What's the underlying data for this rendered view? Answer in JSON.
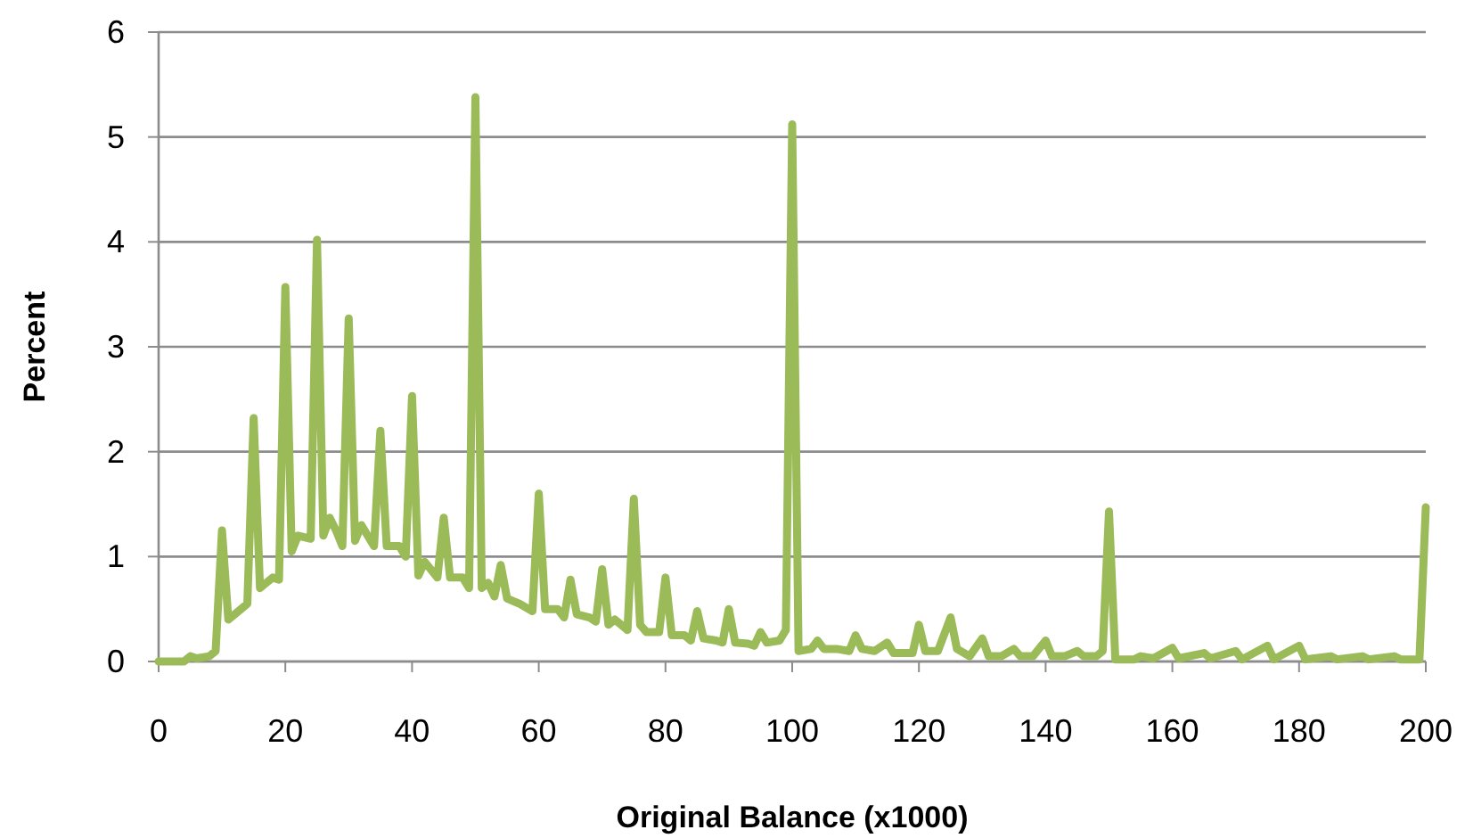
{
  "chart_data": {
    "type": "line",
    "xlabel": "Original Balance  (x1000)",
    "ylabel": "Percent",
    "x": [
      0,
      4,
      5,
      6,
      8,
      9,
      10,
      11,
      13,
      14,
      15,
      16,
      18,
      19,
      20,
      21,
      22,
      24,
      25,
      26,
      27,
      28,
      29,
      30,
      31,
      32,
      34,
      35,
      36,
      38,
      39,
      40,
      41,
      42,
      44,
      45,
      46,
      48,
      49,
      50,
      51,
      52,
      53,
      54,
      55,
      57,
      59,
      60,
      61,
      63,
      64,
      65,
      66,
      68,
      69,
      70,
      71,
      72,
      73,
      74,
      75,
      76,
      77,
      79,
      80,
      81,
      83,
      84,
      85,
      86,
      88,
      89,
      90,
      91,
      93,
      94,
      95,
      96,
      98,
      99,
      100,
      101,
      103,
      104,
      105,
      107,
      109,
      110,
      111,
      113,
      115,
      116,
      119,
      120,
      121,
      123,
      125,
      126,
      128,
      130,
      131,
      133,
      135,
      136,
      138,
      140,
      141,
      143,
      145,
      146,
      148,
      149,
      150,
      151,
      154,
      155,
      157,
      160,
      161,
      165,
      166,
      170,
      171,
      175,
      176,
      180,
      181,
      185,
      186,
      190,
      191,
      195,
      196,
      199,
      200
    ],
    "series": [
      {
        "color": "#9bbb59",
        "values": [
          0,
          0,
          0.05,
          0.03,
          0.05,
          0.1,
          1.25,
          0.4,
          0.5,
          0.55,
          2.32,
          0.7,
          0.8,
          0.78,
          3.57,
          1.05,
          1.2,
          1.17,
          4.02,
          1.2,
          1.37,
          1.25,
          1.1,
          3.27,
          1.15,
          1.3,
          1.1,
          2.2,
          1.1,
          1.1,
          1.0,
          2.53,
          0.82,
          0.95,
          0.8,
          1.37,
          0.8,
          0.8,
          0.7,
          5.38,
          0.7,
          0.75,
          0.62,
          0.92,
          0.6,
          0.55,
          0.48,
          1.6,
          0.5,
          0.5,
          0.42,
          0.78,
          0.45,
          0.42,
          0.38,
          0.88,
          0.35,
          0.4,
          0.35,
          0.3,
          1.55,
          0.35,
          0.28,
          0.28,
          0.8,
          0.25,
          0.25,
          0.2,
          0.48,
          0.22,
          0.2,
          0.18,
          0.5,
          0.18,
          0.17,
          0.15,
          0.28,
          0.18,
          0.2,
          0.3,
          5.12,
          0.1,
          0.12,
          0.2,
          0.12,
          0.12,
          0.1,
          0.25,
          0.12,
          0.1,
          0.18,
          0.08,
          0.08,
          0.35,
          0.1,
          0.1,
          0.42,
          0.12,
          0.05,
          0.22,
          0.05,
          0.05,
          0.12,
          0.05,
          0.05,
          0.2,
          0.05,
          0.05,
          0.1,
          0.05,
          0.05,
          0.1,
          1.43,
          0.02,
          0.02,
          0.05,
          0.03,
          0.13,
          0.03,
          0.08,
          0.03,
          0.1,
          0.02,
          0.15,
          0.02,
          0.15,
          0.02,
          0.05,
          0.02,
          0.05,
          0.02,
          0.05,
          0.02,
          0.02,
          1.47
        ]
      }
    ],
    "xlim": [
      0,
      200
    ],
    "xticks": [
      0,
      20,
      40,
      60,
      80,
      100,
      120,
      140,
      160,
      180,
      200
    ],
    "ylim": [
      0,
      6
    ],
    "yticks": [
      0,
      1,
      2,
      3,
      4,
      5,
      6
    ],
    "grid": "y",
    "marker": "none",
    "line_style": "solid"
  }
}
